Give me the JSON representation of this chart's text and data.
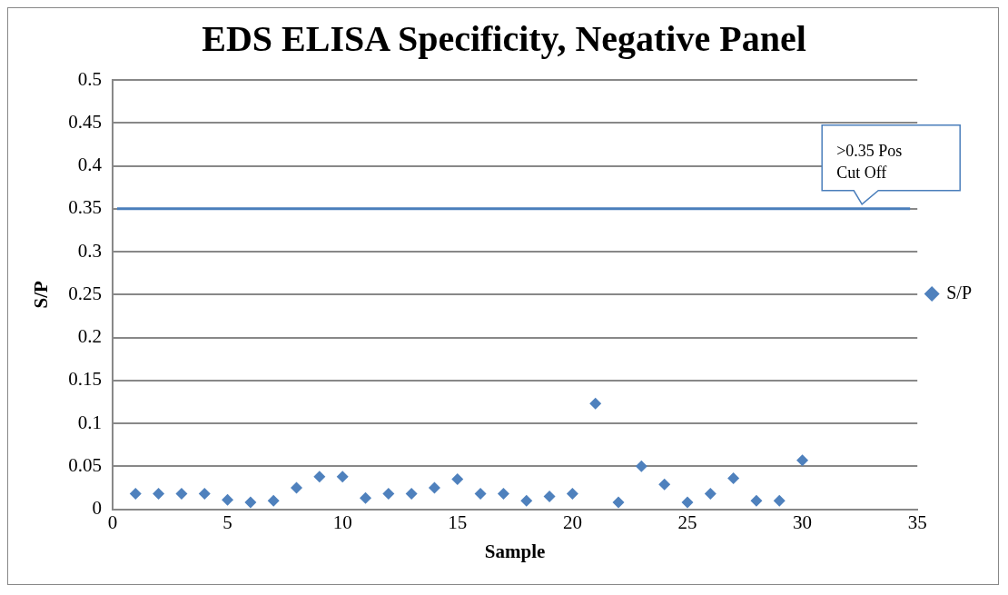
{
  "chart_data": {
    "type": "scatter",
    "title": "EDS ELISA Specificity, Negative Panel",
    "xlabel": "Sample",
    "ylabel": "S/P",
    "x": [
      1,
      2,
      3,
      4,
      5,
      6,
      7,
      8,
      9,
      10,
      11,
      12,
      13,
      14,
      15,
      16,
      17,
      18,
      19,
      20,
      21,
      22,
      23,
      24,
      25,
      26,
      27,
      28,
      29,
      30
    ],
    "series": [
      {
        "name": "S/P",
        "color": "#4f81bd",
        "values": [
          0.018,
          0.018,
          0.018,
          0.018,
          0.011,
          0.008,
          0.01,
          0.025,
          0.038,
          0.038,
          0.013,
          0.018,
          0.018,
          0.025,
          0.035,
          0.018,
          0.018,
          0.01,
          0.015,
          0.018,
          0.123,
          0.008,
          0.05,
          0.029,
          0.008,
          0.018,
          0.036,
          0.01,
          0.01,
          0.057
        ]
      }
    ],
    "xlim": [
      0,
      35
    ],
    "xticks": [
      0,
      5,
      10,
      15,
      20,
      25,
      30,
      35
    ],
    "ylim": [
      0,
      0.5
    ],
    "yticks": [
      0,
      0.05,
      0.1,
      0.15,
      0.2,
      0.25,
      0.3,
      0.35,
      0.4,
      0.45,
      0.5
    ],
    "ref_lines": [
      {
        "axis": "y",
        "value": 0.35,
        "label": ">0.35 Pos Cut Off",
        "color": "#4a7ebb"
      }
    ],
    "grid": "y",
    "legend": "right",
    "marker": "diamond"
  }
}
